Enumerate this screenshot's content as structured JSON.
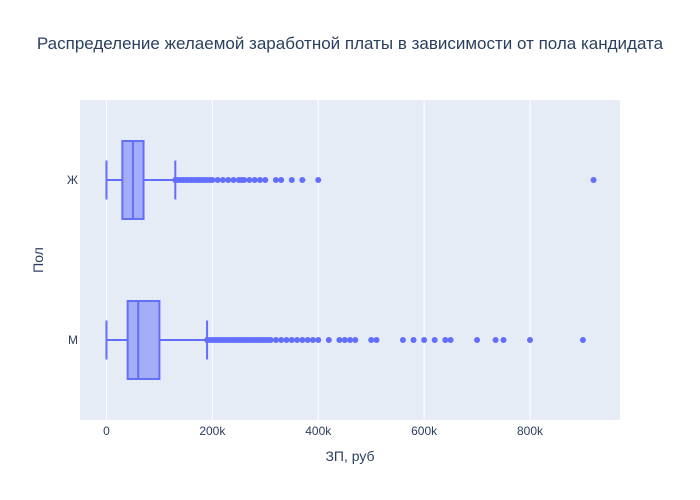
{
  "chart_data": {
    "type": "box",
    "orientation": "horizontal",
    "title": "Распределение желаемой заработной платы в зависимости от пола кандидата",
    "xlabel": "ЗП, руб",
    "ylabel": "Пол",
    "xlim": [
      -50000,
      970000
    ],
    "x_ticks": [
      0,
      200000,
      400000,
      600000,
      800000
    ],
    "x_tick_labels": [
      "0",
      "200k",
      "400k",
      "600k",
      "800k"
    ],
    "categories": [
      "Ж",
      "М"
    ],
    "grid": true,
    "colors": {
      "box": "#636efa",
      "box_fill": "rgba(99,110,250,0.5)",
      "plot_bg": "#e5ecf6",
      "grid": "#ffffff",
      "text": "#2a3f5f"
    },
    "boxes": [
      {
        "category": "Ж",
        "min": 0,
        "q1": 30000,
        "median": 50000,
        "q3": 70000,
        "upper_fence": 130000,
        "outliers": [
          130000,
          135000,
          140000,
          145000,
          150000,
          155000,
          160000,
          165000,
          170000,
          175000,
          180000,
          185000,
          190000,
          195000,
          200000,
          210000,
          220000,
          230000,
          240000,
          250000,
          255000,
          260000,
          270000,
          280000,
          290000,
          300000,
          320000,
          330000,
          350000,
          370000,
          400000,
          920000
        ]
      },
      {
        "category": "М",
        "min": 0,
        "q1": 40000,
        "median": 60000,
        "q3": 100000,
        "upper_fence": 190000,
        "outliers": [
          190000,
          195000,
          200000,
          205000,
          210000,
          215000,
          220000,
          225000,
          230000,
          235000,
          240000,
          245000,
          250000,
          255000,
          260000,
          265000,
          270000,
          275000,
          280000,
          285000,
          290000,
          295000,
          300000,
          305000,
          310000,
          320000,
          330000,
          340000,
          350000,
          360000,
          370000,
          380000,
          390000,
          400000,
          420000,
          440000,
          450000,
          460000,
          470000,
          500000,
          510000,
          560000,
          580000,
          600000,
          620000,
          640000,
          650000,
          700000,
          735000,
          750000,
          800000,
          900000
        ]
      }
    ]
  }
}
